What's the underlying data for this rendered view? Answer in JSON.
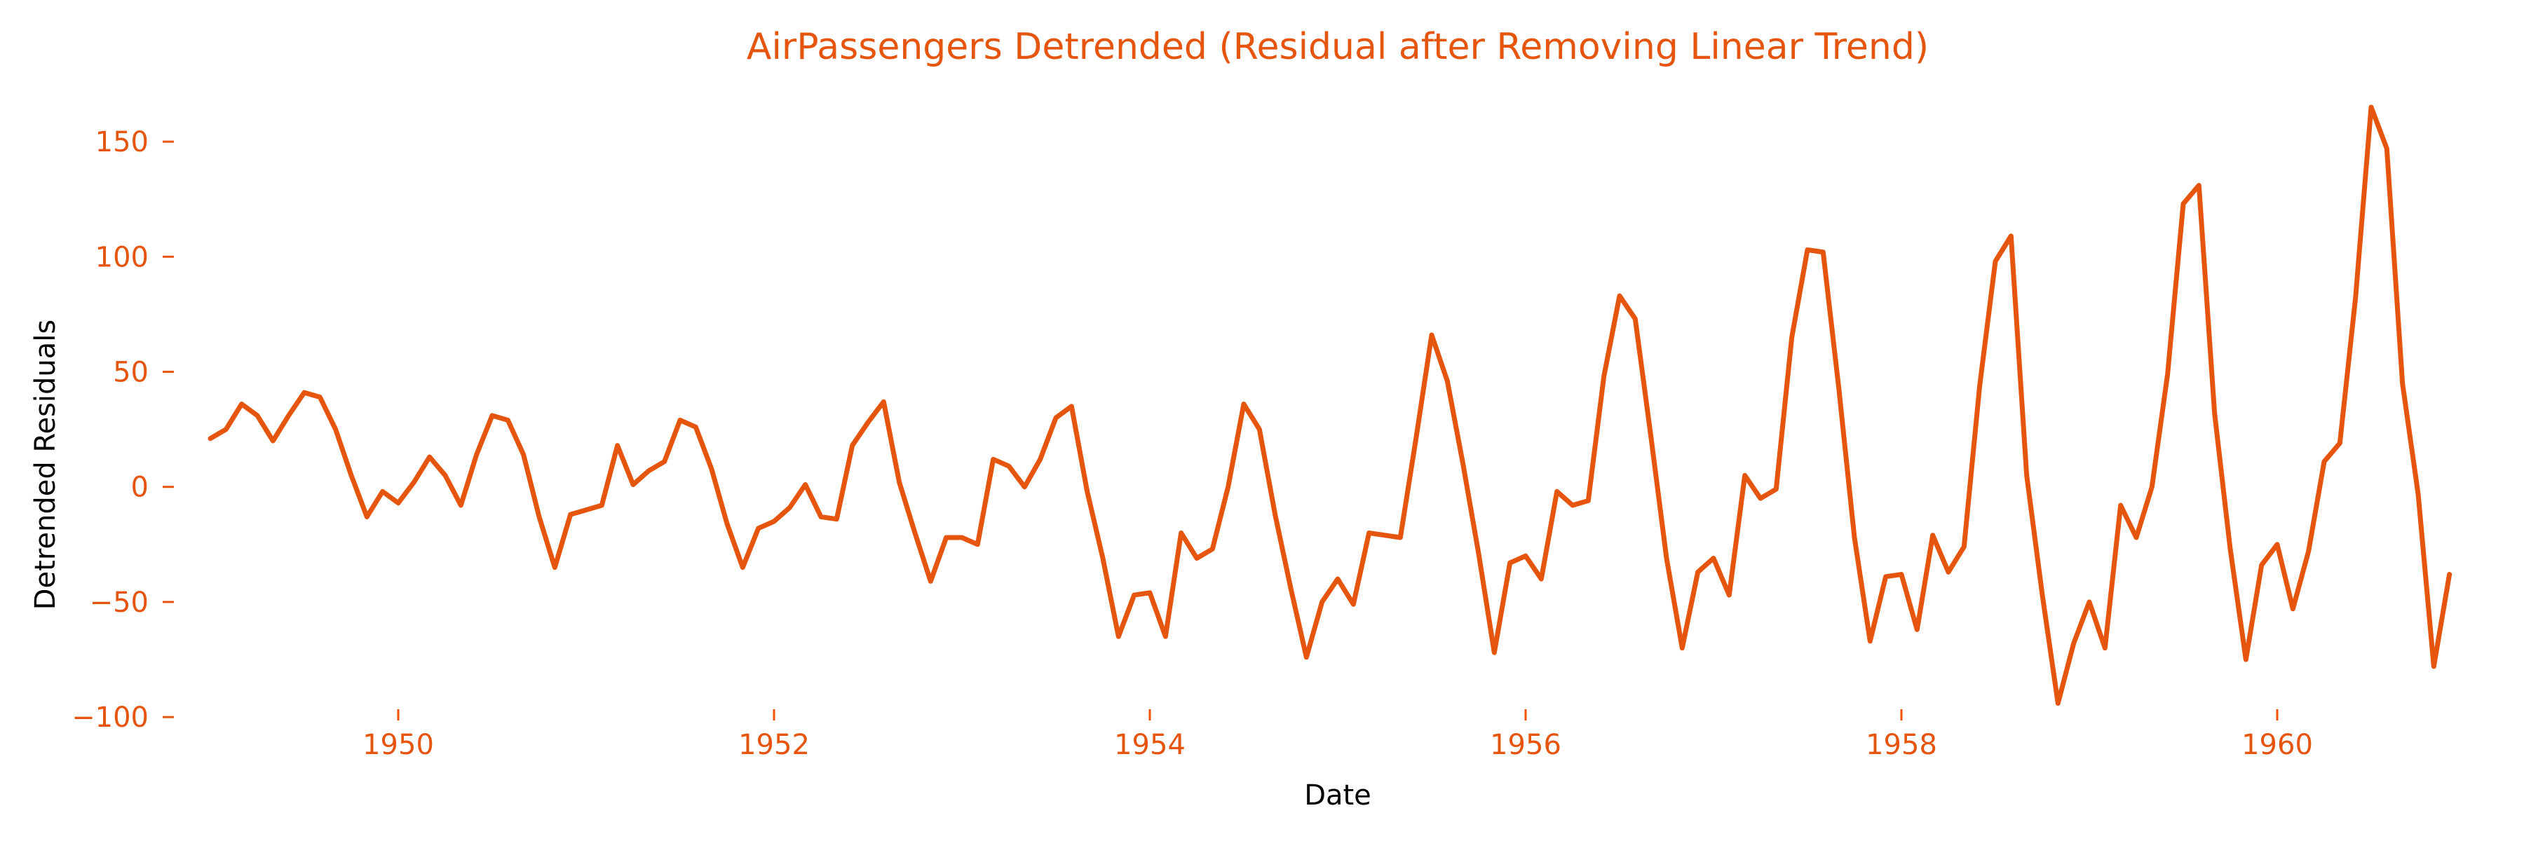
{
  "colors": {
    "accent": "#e6550d",
    "axis_label": "#000000"
  },
  "chart_data": {
    "type": "line",
    "title": "AirPassengers Detrended (Residual after Removing Linear Trend)",
    "xlabel": "Date",
    "ylabel": "Detrended Residuals",
    "x_start": "1949-01",
    "x_step": "1 month",
    "xlim": [
      1949,
      1961
    ],
    "ylim": [
      -110,
      175
    ],
    "grid": false,
    "legend": "none",
    "xticks": [
      1950,
      1952,
      1954,
      1956,
      1958,
      1960
    ],
    "xtick_labels": [
      "1950",
      "1952",
      "1954",
      "1956",
      "1958",
      "1960"
    ],
    "yticks": [
      -100,
      -50,
      0,
      50,
      100,
      150
    ],
    "ytick_labels": [
      "−100",
      "−50",
      "0",
      "50",
      "100",
      "150"
    ],
    "series": [
      {
        "values": [
          21,
          25,
          36,
          31,
          20,
          31,
          41,
          39,
          25,
          5,
          -13,
          -2,
          -7,
          2,
          13,
          5,
          -8,
          14,
          31,
          29,
          14,
          -13,
          -35,
          -12,
          -10,
          -8,
          18,
          1,
          7,
          11,
          29,
          26,
          8,
          -16,
          -35,
          -18,
          -15,
          -9,
          1,
          -13,
          -14,
          18,
          28,
          37,
          2,
          -20,
          -41,
          -22,
          -22,
          -25,
          12,
          9,
          0,
          12,
          30,
          35,
          -2,
          -31,
          -65,
          -47,
          -46,
          -65,
          -20,
          -31,
          -27,
          0,
          36,
          25,
          -12,
          -44,
          -74,
          -50,
          -40,
          -51,
          -20,
          -21,
          -22,
          21,
          66,
          46,
          10,
          -29,
          -72,
          -33,
          -30,
          -40,
          -2,
          -8,
          -6,
          48,
          83,
          73,
          22,
          -31,
          -70,
          -37,
          -31,
          -47,
          5,
          -5,
          -1,
          65,
          103,
          102,
          43,
          -22,
          -67,
          -39,
          -38,
          -62,
          -21,
          -37,
          -26,
          44,
          98,
          109,
          5,
          -47,
          -94,
          -68,
          -50,
          -70,
          -8,
          -22,
          0,
          49,
          123,
          131,
          32,
          -27,
          -75,
          -34,
          -25,
          -53,
          -28,
          11,
          19,
          82,
          165,
          147,
          45,
          -3,
          -78,
          -38
        ]
      }
    ]
  }
}
